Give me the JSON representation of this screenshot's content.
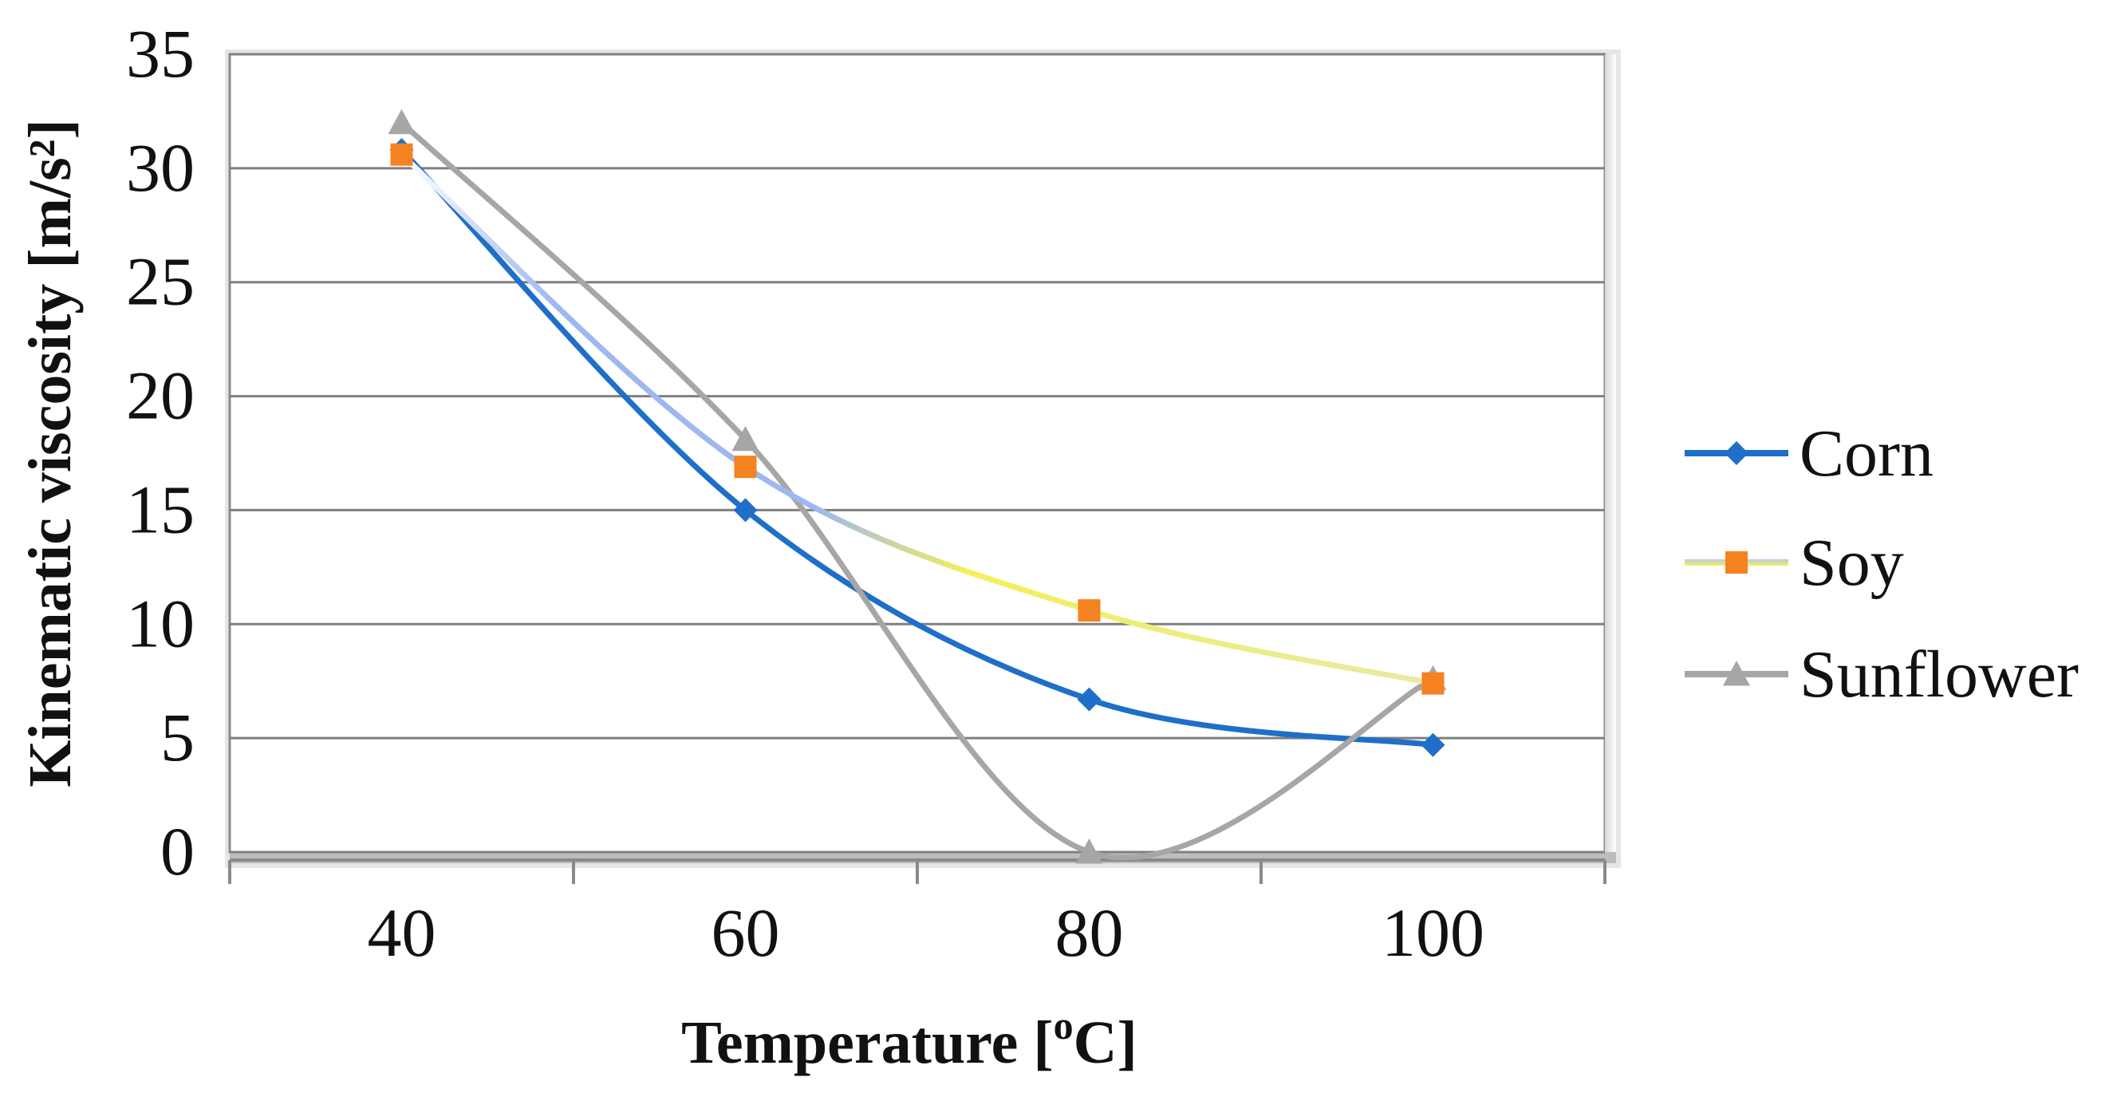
{
  "chart_data": {
    "type": "line",
    "title": "",
    "xlabel": "Temperature [°C]",
    "xlabel_parts": {
      "prefix": "Temperature [",
      "superscript": "o",
      "suffix": "C]"
    },
    "ylabel": "Kinematic viscosity [m/s²]",
    "categories": [
      "40",
      "60",
      "80",
      "100"
    ],
    "ylim": [
      0,
      35
    ],
    "yticks": [
      "0",
      "5",
      "10",
      "15",
      "20",
      "25",
      "30",
      "35"
    ],
    "grid": true,
    "legend_position": "right",
    "series": [
      {
        "name": "Corn",
        "values": [
          30.8,
          15.0,
          6.7,
          4.7
        ],
        "color": "#1F6FC8",
        "marker": "diamond"
      },
      {
        "name": "Soy",
        "values": [
          30.6,
          16.9,
          10.6,
          7.4
        ],
        "color": "#F58220",
        "marker": "square"
      },
      {
        "name": "Sunflower",
        "values": [
          32.0,
          18.1,
          0.0,
          7.6
        ],
        "color": "#A6A6A6",
        "marker": "triangle"
      }
    ]
  }
}
